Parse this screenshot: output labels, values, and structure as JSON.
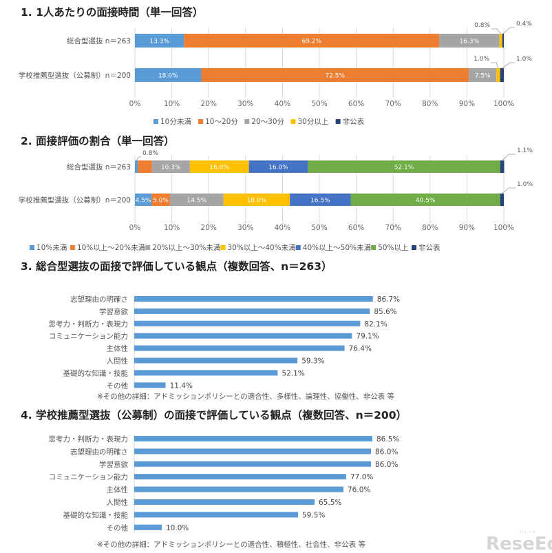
{
  "chart_data": [
    {
      "type": "stacked-bar-horizontal",
      "title": "1. 1人あたりの面接時間（単一回答）",
      "categories": [
        "総合型選抜 n＝263",
        "学校推薦型選抜（公募制）n＝200"
      ],
      "series": [
        {
          "name": "10分未満",
          "color": "#5B9BD5",
          "values": [
            13.3,
            18.0
          ]
        },
        {
          "name": "10～20分",
          "color": "#ED7D31",
          "values": [
            69.2,
            72.5
          ]
        },
        {
          "name": "20～30分",
          "color": "#A5A5A5",
          "values": [
            16.3,
            7.5
          ]
        },
        {
          "name": "30分以上",
          "color": "#FFC000",
          "values": [
            0.8,
            1.0
          ]
        },
        {
          "name": "非公表",
          "color": "#264478",
          "values": [
            0.4,
            1.0
          ]
        }
      ],
      "value_labels": [
        [
          "13.3%",
          "69.2%",
          "16.3%",
          "0.8%",
          "0.4%"
        ],
        [
          "18.0%",
          "72.5%",
          "7.5%",
          "1.0%",
          "1.0%"
        ]
      ],
      "xticks": [
        "0%",
        "10%",
        "20%",
        "30%",
        "40%",
        "50%",
        "60%",
        "70%",
        "80%",
        "90%",
        "100%"
      ],
      "xlim": [
        0,
        100
      ],
      "legend_position": "bottom"
    },
    {
      "type": "stacked-bar-horizontal",
      "title": "2. 面接評価の割合（単一回答）",
      "categories": [
        "総合型選抜 n＝263",
        "学校推薦型選抜（公募制）n＝200"
      ],
      "series": [
        {
          "name": "10%未満",
          "color": "#5B9BD5",
          "values": [
            0.8,
            4.5
          ]
        },
        {
          "name": "10%以上～20%未満",
          "color": "#ED7D31",
          "values": [
            3.8,
            5.0
          ]
        },
        {
          "name": "20%以上～30%未満",
          "color": "#A5A5A5",
          "values": [
            10.3,
            14.5
          ]
        },
        {
          "name": "30%以上～40%未満",
          "color": "#FFC000",
          "values": [
            16.0,
            18.0
          ]
        },
        {
          "name": "40%以上～50%未満",
          "color": "#4472C4",
          "values": [
            16.0,
            16.5
          ]
        },
        {
          "name": "50%以上",
          "color": "#70AD47",
          "values": [
            52.1,
            40.5
          ]
        },
        {
          "name": "非公表",
          "color": "#264478",
          "values": [
            1.1,
            1.0
          ]
        }
      ],
      "value_labels": [
        [
          "0.8%",
          "3.8%",
          "10.3%",
          "16.0%",
          "16.0%",
          "52.1%",
          "1.1%"
        ],
        [
          "4.5%",
          "5.0%",
          "14.5%",
          "18.0%",
          "16.5%",
          "40.5%",
          "1.0%"
        ]
      ],
      "xticks": [
        "0%",
        "10%",
        "20%",
        "30%",
        "40%",
        "50%",
        "60%",
        "70%",
        "80%",
        "90%",
        "100%"
      ],
      "xlim": [
        0,
        100
      ],
      "legend_position": "bottom"
    },
    {
      "type": "bar-horizontal",
      "title": "3. 総合型選抜の面接で評価している観点（複数回答、n＝263）",
      "categories": [
        "志望理由の明確さ",
        "学習意欲",
        "思考力・判断力・表現力",
        "コミュニケーション能力",
        "主体性",
        "人間性",
        "基礎的な知識・技能",
        "その他"
      ],
      "values": [
        86.7,
        85.6,
        82.1,
        79.1,
        76.4,
        59.3,
        52.1,
        11.4
      ],
      "value_labels": [
        "86.7%",
        "85.6%",
        "82.1%",
        "79.1%",
        "76.4%",
        "59.3%",
        "52.1%",
        "11.4%"
      ],
      "color": "#5B9BD5",
      "xlim": [
        0,
        100
      ],
      "note": "※その他の詳細：アドミッションポリシーとの適合性、多様性、論理性、協働性、非公表 等"
    },
    {
      "type": "bar-horizontal",
      "title": "4. 学校推薦型選抜（公募制）の面接で評価している観点（複数回答、n＝200）",
      "categories": [
        "思考力・判断力・表現力",
        "志望理由の明確さ",
        "学習意欲",
        "コミュニケーション能力",
        "主体性",
        "人間性",
        "基礎的な知識・技能",
        "その他"
      ],
      "values": [
        86.5,
        86.0,
        86.0,
        77.0,
        76.0,
        65.5,
        59.5,
        10.0
      ],
      "value_labels": [
        "86.5%",
        "86.0%",
        "86.0%",
        "77.0%",
        "76.0%",
        "65.5%",
        "59.5%",
        "10.0%"
      ],
      "color": "#5B9BD5",
      "xlim": [
        0,
        100
      ],
      "note": "※その他の詳細：アドミッションポリシーとの適合性、積極性、社会性、非公表 等"
    }
  ],
  "watermark": {
    "text": "ReseEd",
    "subtext": "リシード"
  }
}
